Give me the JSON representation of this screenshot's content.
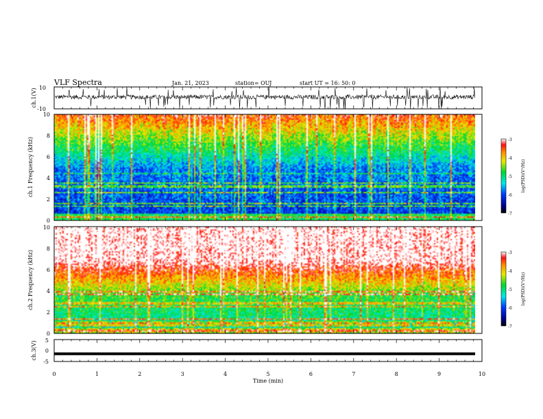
{
  "header": {
    "title": "VLF Spectra",
    "date": "Jan. 21, 2023",
    "station": "station= OUJ",
    "start": "start  UT =   16: 50: 0"
  },
  "chart_data": [
    {
      "type": "line",
      "panel": "ch1-waveform",
      "ylabel": "ch.1(V)",
      "ylim": [
        -10,
        10
      ],
      "yticklabels": [
        "10",
        "-10"
      ],
      "xlim": [
        0,
        10
      ],
      "series": [
        {
          "values": []
        }
      ]
    },
    {
      "type": "heatmap",
      "panel": "ch1-spectrogram",
      "ylabel": "ch.1\nFrequency (kHz)",
      "ylim": [
        0,
        10
      ],
      "yticklabels": [
        "0",
        "2",
        "4",
        "6",
        "8",
        "10"
      ],
      "xlim": [
        0,
        10
      ],
      "colorbar": {
        "label": "log(PSD)(V²/Hz)",
        "range": [
          -7,
          -3
        ],
        "ticks": [
          "-3",
          "-4",
          "-5",
          "-6",
          "-7"
        ]
      },
      "profile": {
        "low_level": -6.2,
        "high_level": -3.8
      }
    },
    {
      "type": "heatmap",
      "panel": "ch2-spectrogram",
      "ylabel": "ch.2\nFrequency (kHz)",
      "ylim": [
        0,
        10
      ],
      "yticklabels": [
        "0",
        "2",
        "4",
        "6",
        "8",
        "10"
      ],
      "xlim": [
        0,
        10
      ],
      "colorbar": {
        "label": "log(PSD)(V²/Hz)",
        "range": [
          -7,
          -3
        ],
        "ticks": [
          "-3",
          "-4",
          "-5",
          "-6",
          "-7"
        ]
      },
      "profile": {
        "low_level": -5.3,
        "high_level": -3.1
      }
    },
    {
      "type": "line",
      "panel": "ch3-waveform",
      "ylabel": "ch.3(V)",
      "ylim": [
        -5,
        5
      ],
      "yticklabels": [
        "5",
        "0",
        "-5"
      ],
      "xlim": [
        0,
        10
      ],
      "xlabel": "Time (min)",
      "xticklabels": [
        "0",
        "1",
        "2",
        "3",
        "4",
        "5",
        "6",
        "7",
        "8",
        "9",
        "10"
      ],
      "series": [
        {
          "values": [
            -1.5
          ]
        }
      ]
    }
  ]
}
